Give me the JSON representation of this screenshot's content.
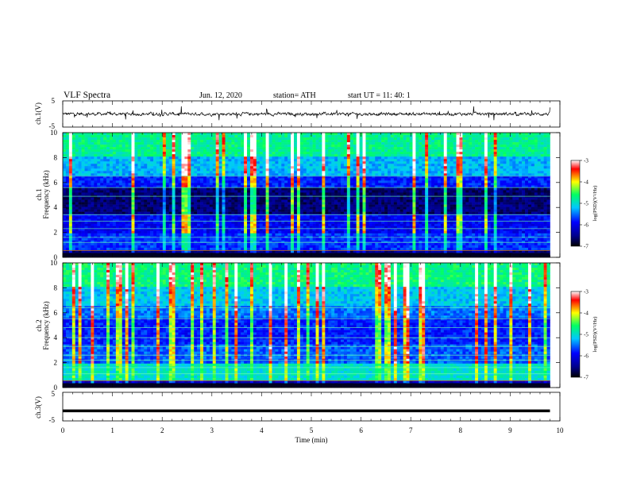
{
  "header": {
    "title": "VLF  Spectra",
    "date": "Jun. 12, 2020",
    "station": "station= ATH",
    "start": "start  UT  =    11: 40: 1"
  },
  "chart_data": [
    {
      "type": "line",
      "panel": "ch1-waveform",
      "ylabel": "ch.1(V)",
      "ylim": [
        -5,
        5
      ],
      "yticks": [
        "5",
        "-5"
      ],
      "xlim": [
        0,
        10
      ]
    },
    {
      "type": "heatmap",
      "panel": "ch1-spectrogram",
      "ylabel": "Frequency (kHz)",
      "ylabel_channel": "ch.1",
      "ylim": [
        0,
        10
      ],
      "yticks": [
        "10",
        "8",
        "6",
        "4",
        "2",
        "0"
      ],
      "xlim": [
        0,
        9.8
      ],
      "colorbar": {
        "label": "log(PSD)(V²/Hz)",
        "range": [
          -7,
          -3
        ],
        "ticks": [
          "-3",
          "-4",
          "-5",
          "-6",
          "-7"
        ]
      }
    },
    {
      "type": "heatmap",
      "panel": "ch2-spectrogram",
      "ylabel": "Frequency (kHz)",
      "ylabel_channel": "ch.2",
      "ylim": [
        0,
        10
      ],
      "yticks": [
        "10",
        "8",
        "6",
        "4",
        "2",
        "0"
      ],
      "xlim": [
        0,
        9.8
      ],
      "colorbar": {
        "label": "log(PSD)(V²/Hz)",
        "range": [
          -7,
          -3
        ],
        "ticks": [
          "-3",
          "-4",
          "-5",
          "-6",
          "-7"
        ]
      }
    },
    {
      "type": "line",
      "panel": "ch3-waveform",
      "ylabel": "ch.3(V)",
      "ylim": [
        -5,
        5
      ],
      "yticks": [
        "5",
        "-5"
      ],
      "xlim": [
        0,
        10
      ],
      "constant_value": -1.5
    }
  ],
  "xaxis": {
    "label": "Time  (min)",
    "ticks": [
      "0",
      "1",
      "2",
      "3",
      "4",
      "5",
      "6",
      "7",
      "8",
      "9",
      "10"
    ]
  },
  "colors": {
    "background": "#ffffff",
    "trace": "#000000",
    "colormap": [
      "#000000",
      "#00008c",
      "#0000ff",
      "#00c8ff",
      "#00ff64",
      "#ffff00",
      "#ff0000",
      "#ffffff"
    ]
  }
}
